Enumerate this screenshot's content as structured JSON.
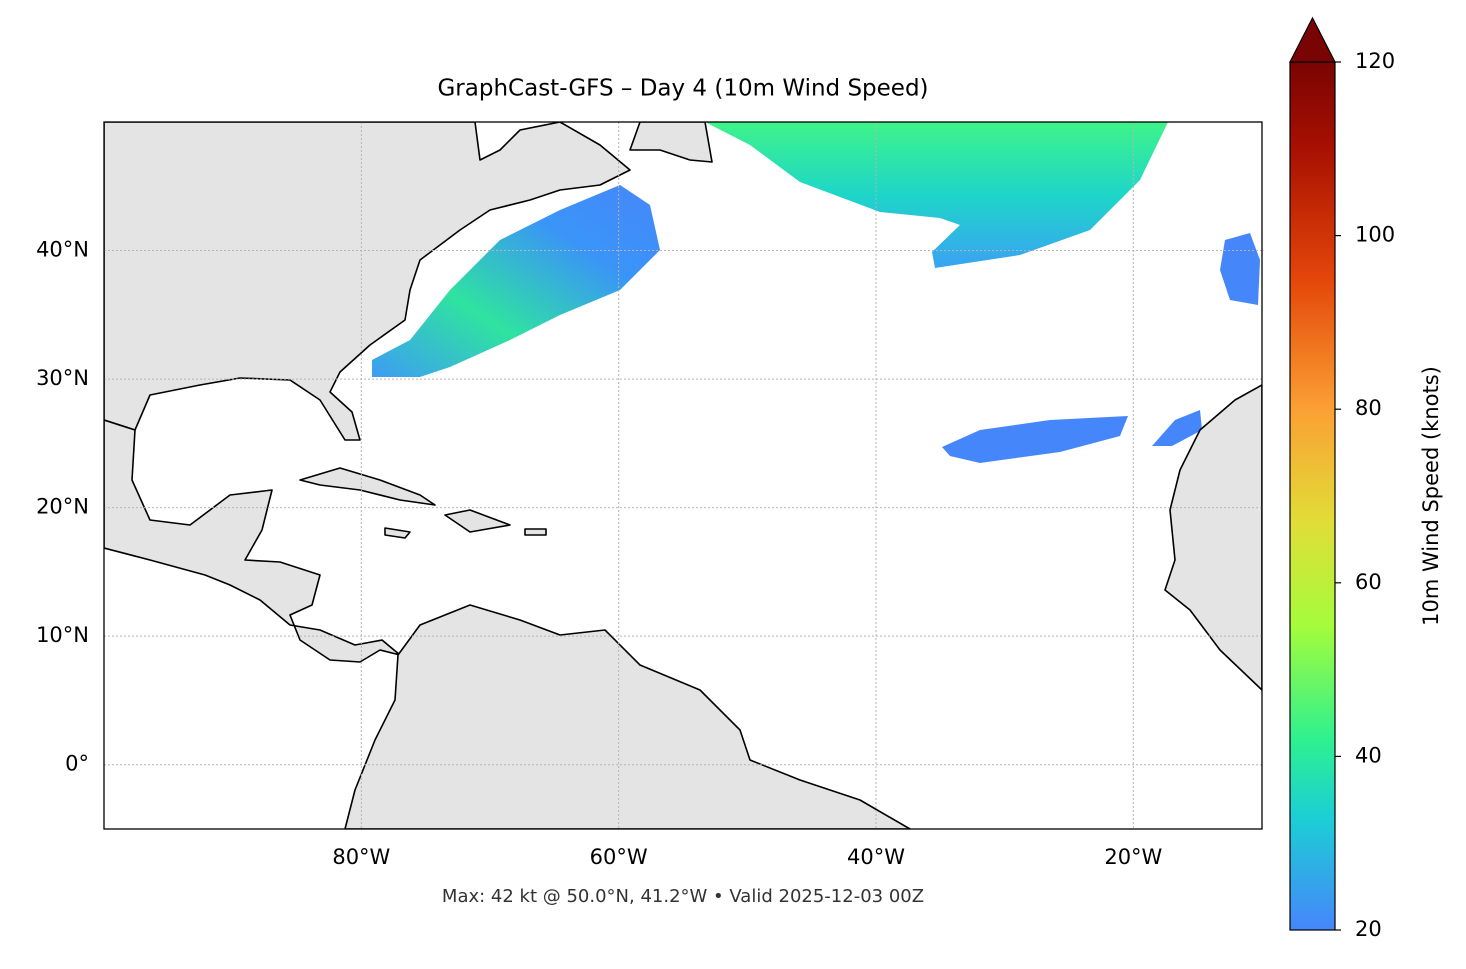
{
  "chart_data": {
    "type": "map",
    "title": "GraphCast-GFS – Day 4 (10m Wind Speed)",
    "footer": "Max: 42 kt @ 50.0°N, 41.2°W • Valid 2025-12-03 00Z",
    "xlim": [
      -100,
      -10
    ],
    "ylim": [
      -5,
      50
    ],
    "xticks": [
      {
        "value": -80,
        "label": "80°W"
      },
      {
        "value": -60,
        "label": "60°W"
      },
      {
        "value": -40,
        "label": "40°W"
      },
      {
        "value": -20,
        "label": "20°W"
      }
    ],
    "yticks": [
      {
        "value": 0,
        "label": "0°"
      },
      {
        "value": 10,
        "label": "10°N"
      },
      {
        "value": 20,
        "label": "20°N"
      },
      {
        "value": 30,
        "label": "30°N"
      },
      {
        "value": 40,
        "label": "40°N"
      }
    ],
    "grid": true,
    "colorbar": {
      "label": "10m Wind Speed (knots)",
      "lim": [
        20,
        120
      ],
      "ticks": [
        20,
        40,
        60,
        80,
        100,
        120
      ],
      "extend": "max"
    }
  }
}
